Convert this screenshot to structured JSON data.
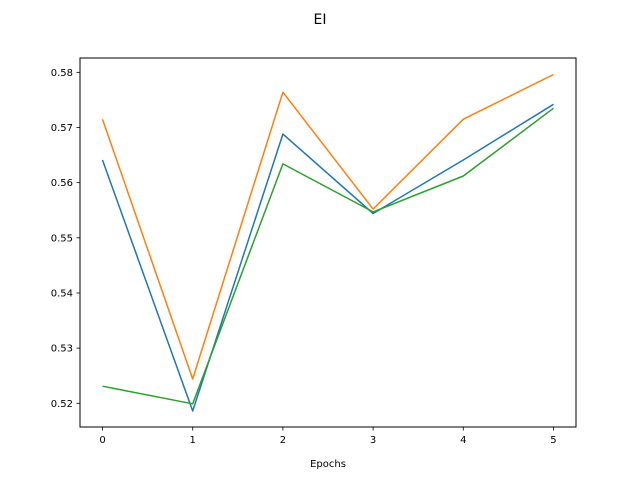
{
  "chart_data": {
    "type": "line",
    "title": "EI",
    "xlabel": "Epochs",
    "ylabel": "",
    "x": [
      0,
      1,
      2,
      3,
      4,
      5
    ],
    "xticks": [
      0,
      1,
      2,
      3,
      4,
      5
    ],
    "yticks": [
      0.52,
      0.53,
      0.54,
      0.55,
      0.56,
      0.57,
      0.58
    ],
    "xlim": [
      -0.25,
      5.25
    ],
    "ylim": [
      0.5157,
      0.5826
    ],
    "grid": false,
    "series": [
      {
        "color": "#1f77b4",
        "values": [
          0.5641,
          0.5186,
          0.5688,
          0.5544,
          0.5641,
          0.5742
        ]
      },
      {
        "color": "#ff7f0e",
        "values": [
          0.5715,
          0.5244,
          0.5764,
          0.5552,
          0.5715,
          0.5796
        ]
      },
      {
        "color": "#2ca02c",
        "values": [
          0.5231,
          0.5199,
          0.5634,
          0.5547,
          0.5612,
          0.5735
        ]
      }
    ]
  }
}
